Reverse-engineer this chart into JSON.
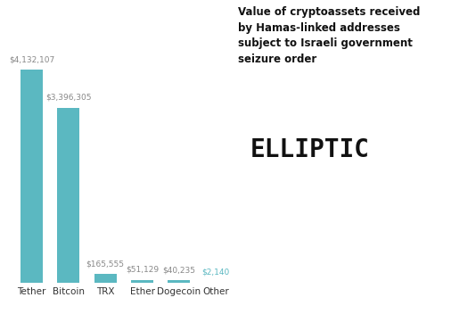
{
  "categories": [
    "Tether",
    "Bitcoin",
    "TRX",
    "Ether",
    "Dogecoin",
    "Other"
  ],
  "values": [
    4132107,
    3396305,
    165555,
    51129,
    40235,
    2140
  ],
  "labels": [
    "$4,132,107",
    "$3,396,305",
    "$165,555",
    "$51,129",
    "$40,235",
    "$2,140"
  ],
  "bar_color": "#5bb8c1",
  "background_color": "#ffffff",
  "title_text": "Value of cryptoassets received\nby Hamas-linked addresses\nsubject to Israeli government\nseizure order",
  "watermark": "ELLIPTIC",
  "label_color_main": "#888888",
  "label_color_other": "#5bb8c1",
  "xtick_color": "#333333",
  "figsize": [
    5.34,
    3.52
  ],
  "dpi": 100,
  "ylim": [
    0,
    5000000
  ]
}
